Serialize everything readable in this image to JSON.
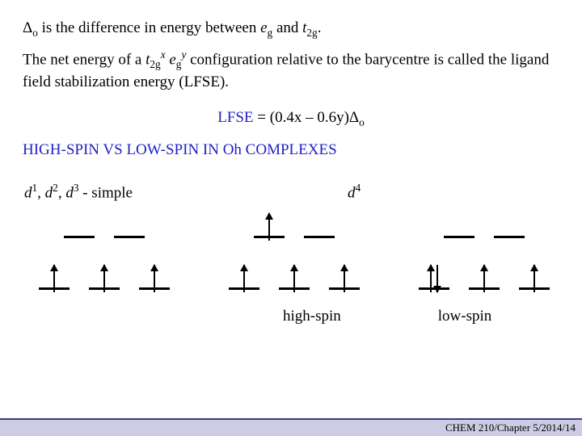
{
  "line1_pre": "Δ",
  "line1_sub": "o",
  "line1_mid": " is the difference in energy between ",
  "line1_eg_e": "e",
  "line1_eg_g": "g",
  "line1_and": " and ",
  "line1_t2g_t": "t",
  "line1_t2g_2g": "2g",
  "line1_end": ".",
  "line2_a": "The net energy of a ",
  "line2_t": "t",
  "line2_t_sub": "2g",
  "line2_t_sup": "x",
  "line2_sp": " ",
  "line2_e": "e",
  "line2_e_sub": "g",
  "line2_e_sup": "y",
  "line2_b": " configuration relative to the barycentre is called the ligand field stabilization energy (LFSE).",
  "formula_lfse": "LFSE",
  "formula_eq": "  =  (0.4x – 0.6y)Δ",
  "formula_sub": "o",
  "heading": "HIGH-SPIN VS LOW-SPIN IN Oh COMPLEXES",
  "label_left_d": "d",
  "label_left_1": "1",
  "label_left_c1": ", ",
  "label_left_2": "2",
  "label_left_c2": ", ",
  "label_left_3": "3",
  "label_left_tail": " - simple",
  "label_right_d": "d",
  "label_right_4": "4",
  "spin_high": "high-spin",
  "spin_low": "low-spin",
  "footer": "CHEM 210/Chapter 5/2014/14"
}
